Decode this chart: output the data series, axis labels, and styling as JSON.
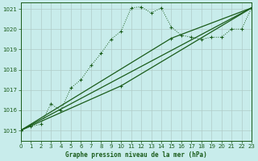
{
  "bg_color": "#c8eceb",
  "grid_color": "#b0ccc8",
  "line_color": "#1a5c1a",
  "title": "Graphe pression niveau de la mer (hPa)",
  "xlim": [
    0,
    23
  ],
  "ylim": [
    1014.5,
    1021.3
  ],
  "yticks": [
    1015,
    1016,
    1017,
    1018,
    1019,
    1020,
    1021
  ],
  "xticks": [
    0,
    1,
    2,
    3,
    4,
    5,
    6,
    7,
    8,
    9,
    10,
    11,
    12,
    13,
    14,
    15,
    16,
    17,
    18,
    19,
    20,
    21,
    22,
    23
  ],
  "series1_x": [
    0,
    1,
    2,
    3,
    4,
    5,
    6,
    7,
    8,
    9,
    10,
    11,
    12,
    13,
    14,
    15,
    16,
    17,
    18,
    19,
    20,
    21,
    22,
    23
  ],
  "series1_y": [
    1015.0,
    1015.2,
    1015.3,
    1016.3,
    1016.0,
    1017.1,
    1017.5,
    1018.2,
    1018.8,
    1019.5,
    1019.9,
    1021.05,
    1021.1,
    1020.8,
    1021.05,
    1020.1,
    1019.7,
    1019.6,
    1019.5,
    1019.6,
    1019.6,
    1020.0,
    1020.0,
    1021.05
  ],
  "series2_x": [
    0,
    23
  ],
  "series2_y": [
    1015.0,
    1021.05
  ],
  "series3_x": [
    0,
    15,
    23
  ],
  "series3_y": [
    1015.0,
    1019.55,
    1021.05
  ],
  "series4_x": [
    0,
    10,
    23
  ],
  "series4_y": [
    1015.0,
    1017.2,
    1021.05
  ]
}
